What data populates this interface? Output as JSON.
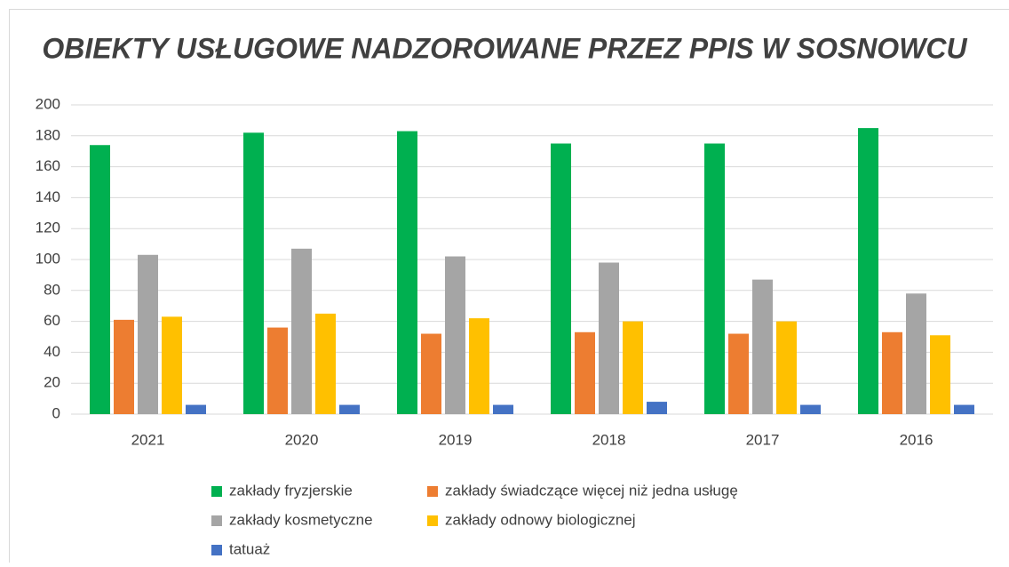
{
  "chart_data": {
    "type": "bar",
    "title": "OBIEKTY USŁUGOWE NADZOROWANE PRZEZ PPIS W SOSNOWCU",
    "categories": [
      "2021",
      "2020",
      "2019",
      "2018",
      "2017",
      "2016"
    ],
    "series": [
      {
        "name": "zakłady fryzjerskie",
        "color": "#00b050",
        "values": [
          174,
          182,
          183,
          175,
          175,
          185
        ]
      },
      {
        "name": "zakłady świadczące więcej niż jedna usługę",
        "color": "#ed7d31",
        "values": [
          61,
          56,
          52,
          53,
          52,
          53
        ]
      },
      {
        "name": "zakłady kosmetyczne",
        "color": "#a5a5a5",
        "values": [
          103,
          107,
          102,
          98,
          87,
          78
        ]
      },
      {
        "name": "zakłady odnowy biologicznej",
        "color": "#ffc000",
        "values": [
          63,
          65,
          62,
          60,
          60,
          51
        ]
      },
      {
        "name": "tatuaż",
        "color": "#4472c4",
        "values": [
          6,
          6,
          6,
          8,
          6,
          6
        ]
      }
    ],
    "ylim": [
      0,
      200
    ],
    "yticks": [
      0,
      20,
      40,
      60,
      80,
      100,
      120,
      140,
      160,
      180,
      200
    ],
    "grid": true,
    "legend": "bottom"
  }
}
